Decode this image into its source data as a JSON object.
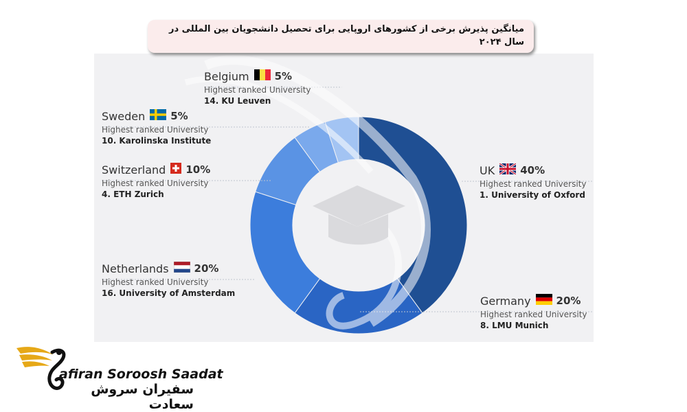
{
  "title": "میانگین پذیرش برخی از کشورهای اروپایی برای تحصیل دانشجویان بین المللی در سال ۲۰۲۴",
  "chart_data": {
    "type": "pie",
    "title": "میانگین پذیرش برخی از کشورهای اروپایی برای تحصیل دانشجویان بین المللی در سال ۲۰۲۴",
    "slices": [
      {
        "country": "UK",
        "value": 40,
        "percent_label": "40%",
        "sublabel": "Highest ranked University",
        "university": "1. University of Oxford",
        "color": "#1f4f93",
        "flag": "uk-flag-icon"
      },
      {
        "country": "Germany",
        "value": 20,
        "percent_label": "20%",
        "sublabel": "Highest ranked University",
        "university": "8. LMU Munich",
        "color": "#2a65c4",
        "flag": "germany-flag-icon"
      },
      {
        "country": "Netherlands",
        "value": 20,
        "percent_label": "20%",
        "sublabel": "Highest ranked University",
        "university": "16. University of Amsterdam",
        "color": "#3c7ddc",
        "flag": "netherlands-flag-icon"
      },
      {
        "country": "Switzerland",
        "value": 10,
        "percent_label": "10%",
        "sublabel": "Highest ranked University",
        "university": "4. ETH Zurich",
        "color": "#5a93e4",
        "flag": "switzerland-flag-icon"
      },
      {
        "country": "Sweden",
        "value": 5,
        "percent_label": "5%",
        "sublabel": "Highest ranked University",
        "university": "10. Karolinska Institute",
        "color": "#7aa9ec",
        "flag": "sweden-flag-icon"
      },
      {
        "country": "Belgium",
        "value": 5,
        "percent_label": "5%",
        "sublabel": "Highest ranked University",
        "university": "14. KU Leuven",
        "color": "#a3c4f3",
        "flag": "belgium-flag-icon"
      }
    ]
  },
  "logo": {
    "name_en": "afiran Soroosh Saadat",
    "name_fa": "سفیران سروش سعادت",
    "gold": "#e6a817"
  }
}
